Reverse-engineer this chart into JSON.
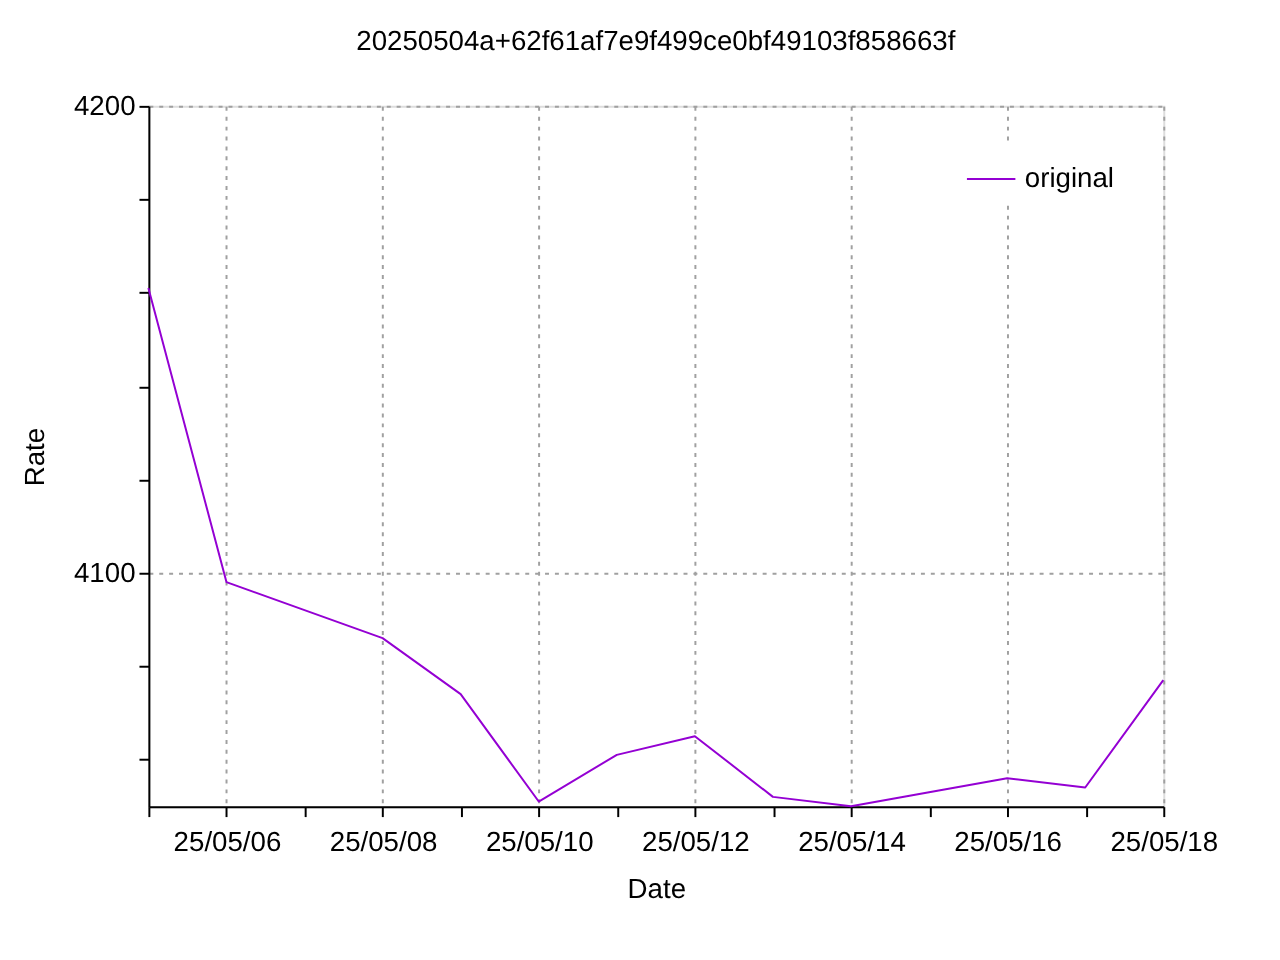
{
  "chart_data": {
    "type": "line",
    "title": "20250504a+62f61af7e9f499ce0bf49103f858663f",
    "xlabel": "Date",
    "ylabel": "Rate",
    "x": [
      "2025-05-05",
      "2025-05-06",
      "2025-05-07",
      "2025-05-08",
      "2025-05-09",
      "2025-05-10",
      "2025-05-11",
      "2025-05-12",
      "2025-05-13",
      "2025-05-14",
      "2025-05-15",
      "2025-05-16",
      "2025-05-17",
      "2025-05-18"
    ],
    "series": [
      {
        "name": "original",
        "color": "#9400d3",
        "values": [
          4161,
          4098,
          4092,
          4086,
          4074,
          4051,
          4061,
          4065,
          4052,
          4050,
          4053,
          4056,
          4054,
          4077
        ]
      }
    ],
    "xlim": [
      "2025-05-05",
      "2025-05-18"
    ],
    "xticks": [
      {
        "value": "2025-05-05",
        "label": null
      },
      {
        "value": "2025-05-06",
        "label": "25/05/06"
      },
      {
        "value": "2025-05-07",
        "label": null
      },
      {
        "value": "2025-05-08",
        "label": "25/05/08"
      },
      {
        "value": "2025-05-09",
        "label": null
      },
      {
        "value": "2025-05-10",
        "label": "25/05/10"
      },
      {
        "value": "2025-05-11",
        "label": null
      },
      {
        "value": "2025-05-12",
        "label": "25/05/12"
      },
      {
        "value": "2025-05-13",
        "label": null
      },
      {
        "value": "2025-05-14",
        "label": "25/05/14"
      },
      {
        "value": "2025-05-15",
        "label": null
      },
      {
        "value": "2025-05-16",
        "label": "25/05/16"
      },
      {
        "value": "2025-05-17",
        "label": null
      },
      {
        "value": "2025-05-18",
        "label": "25/05/18"
      }
    ],
    "ylim": [
      4050,
      4200
    ],
    "yticks": [
      {
        "value": 4060,
        "label": null
      },
      {
        "value": 4080,
        "label": null
      },
      4100,
      {
        "value": 4120,
        "label": null
      },
      {
        "value": 4140,
        "label": null
      },
      {
        "value": 4160,
        "label": null
      },
      {
        "value": 4180,
        "label": null
      },
      4200
    ],
    "grid": true,
    "legend": "top right",
    "marker": "none",
    "line_style": "solid"
  }
}
